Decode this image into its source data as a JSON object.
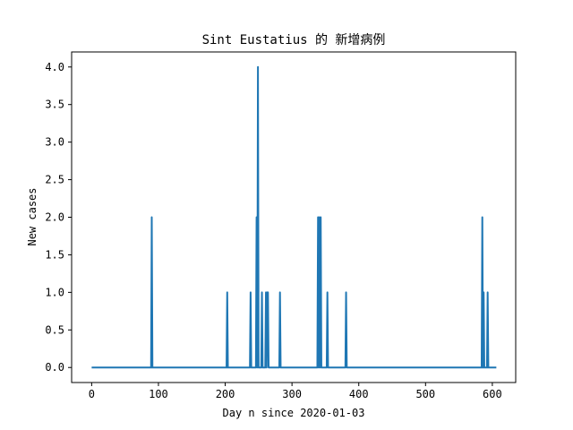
{
  "chart_data": {
    "type": "line",
    "title": "Sint Eustatius 的 新增病例",
    "xlabel": "Day n since 2020-01-03",
    "ylabel": "New cases",
    "xlim": [
      -30,
      635
    ],
    "ylim": [
      -0.2,
      4.2
    ],
    "xticks": [
      0,
      100,
      200,
      300,
      400,
      500,
      600
    ],
    "xtick_labels": [
      "0",
      "100",
      "200",
      "300",
      "400",
      "500",
      "600"
    ],
    "yticks": [
      0,
      0.5,
      1,
      1.5,
      2,
      2.5,
      3,
      3.5,
      4
    ],
    "ytick_labels": [
      "0.0",
      "0.5",
      "1.0",
      "1.5",
      "2.0",
      "2.5",
      "3.0",
      "3.5",
      "4.0"
    ],
    "grid": false,
    "legend": "none",
    "series": [
      {
        "color": "#1f77b4",
        "x": [
          0,
          89,
          90,
          91,
          202,
          203,
          204,
          237,
          238,
          239,
          246,
          247,
          248,
          249,
          250,
          251,
          254,
          255,
          256,
          260,
          261,
          262,
          263,
          264,
          265,
          281,
          282,
          283,
          338,
          339,
          340,
          341,
          342,
          343,
          344,
          352,
          353,
          354,
          380,
          381,
          382,
          584,
          585,
          586,
          587,
          588,
          592,
          593,
          594,
          606
        ],
        "y": [
          0,
          0,
          2,
          0,
          0,
          1,
          0,
          0,
          1,
          0,
          0,
          2,
          0,
          4,
          0,
          0,
          0,
          1,
          0,
          0,
          1,
          0,
          1,
          1,
          0,
          0,
          1,
          0,
          0,
          2,
          0,
          2,
          0,
          2,
          0,
          0,
          1,
          0,
          0,
          1,
          0,
          0,
          2,
          0,
          1,
          0,
          0,
          1,
          0,
          0
        ]
      }
    ]
  }
}
